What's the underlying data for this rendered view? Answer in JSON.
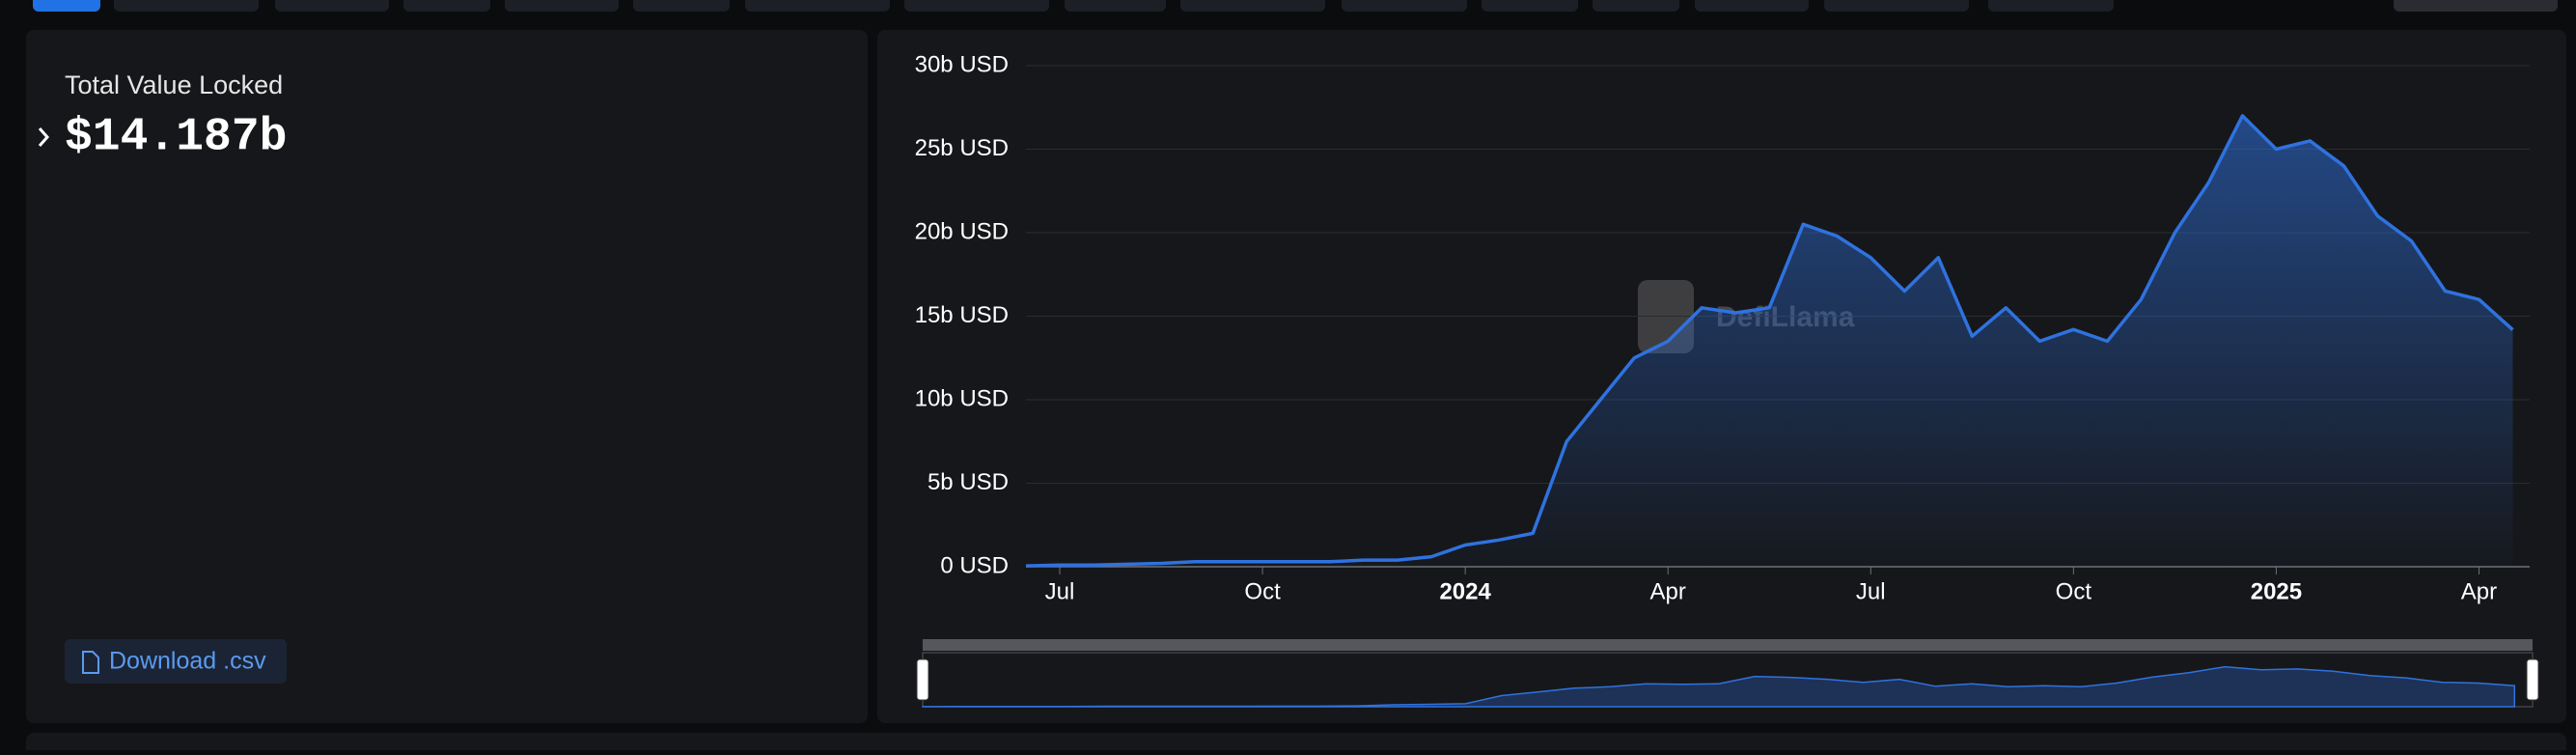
{
  "tvl_label": "Total Value Locked",
  "tvl_value": "$14.187b",
  "download_label": "Download .csv",
  "watermark": "DefiLlama",
  "chart_data": {
    "type": "line",
    "color": "#2f72e0",
    "grid": true,
    "values": [
      50000000,
      100000000,
      100000000,
      150000000,
      200000000,
      300000000,
      300000000,
      300000000,
      300000000,
      300000000,
      400000000,
      400000000,
      600000000,
      1300000000,
      1600000000,
      2000000000,
      7500000000,
      10000000000,
      12500000000,
      13500000000,
      15500000000,
      15200000000,
      15500000000,
      20500000000,
      19800000000,
      18500000000,
      16500000000,
      18500000000,
      13800000000,
      15500000000,
      13500000000,
      14200000000,
      13500000000,
      16000000000,
      20000000000,
      23000000000,
      27000000000,
      25000000000,
      25500000000,
      24000000000,
      21000000000,
      19500000000,
      16500000000,
      16000000000,
      14187000000
    ],
    "xlim": [
      0,
      44.5
    ],
    "xticks": [
      {
        "value": 1,
        "label": "Jul"
      },
      {
        "value": 7,
        "label": "Oct"
      },
      {
        "value": 13,
        "label": "2024"
      },
      {
        "value": 19,
        "label": "Apr"
      },
      {
        "value": 25,
        "label": "Jul"
      },
      {
        "value": 31,
        "label": "Oct"
      },
      {
        "value": 37,
        "label": "2025"
      },
      {
        "value": 43,
        "label": "Apr"
      }
    ],
    "ylim": [
      0,
      30000000000
    ],
    "yticks": [
      {
        "value": 0,
        "label": "0 USD"
      },
      {
        "value": 5000000000,
        "label": "5b USD"
      },
      {
        "value": 10000000000,
        "label": "10b USD"
      },
      {
        "value": 15000000000,
        "label": "15b USD"
      },
      {
        "value": 20000000000,
        "label": "20b USD"
      },
      {
        "value": 25000000000,
        "label": "25b USD"
      },
      {
        "value": 30000000000,
        "label": "30b USD"
      }
    ]
  }
}
